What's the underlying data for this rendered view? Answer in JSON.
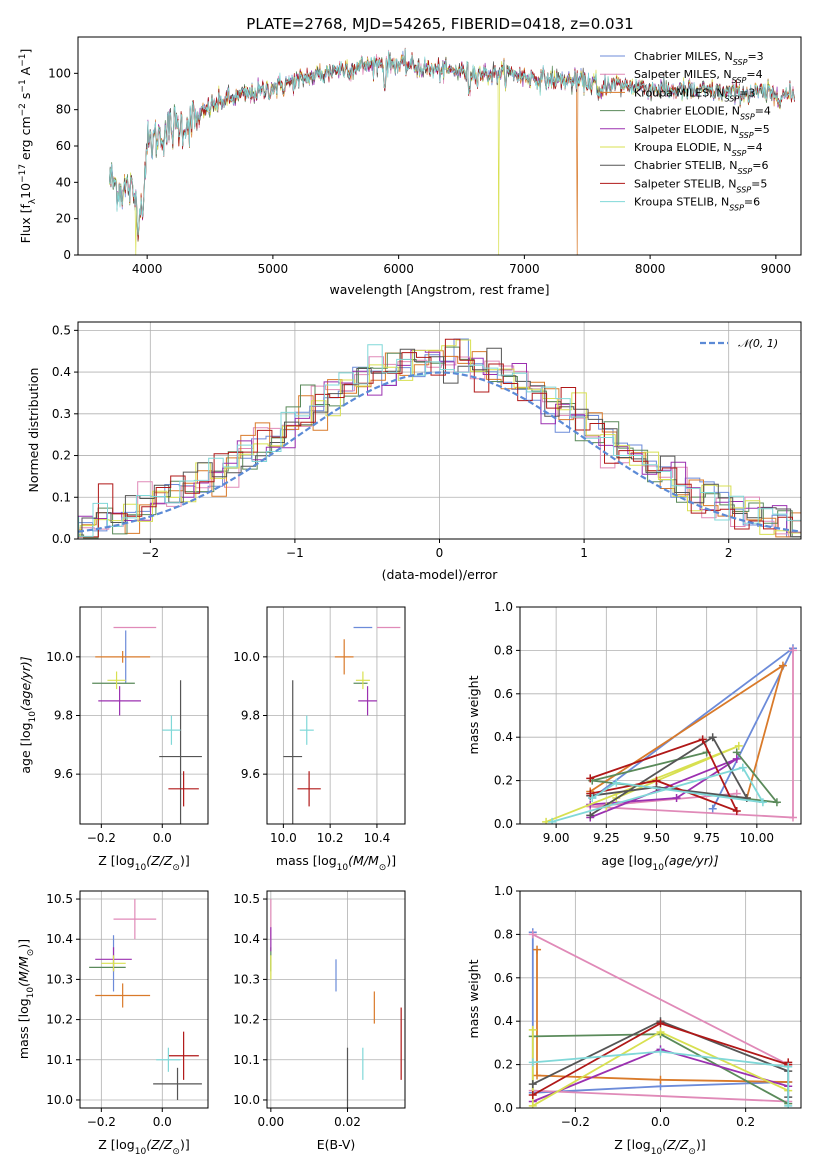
{
  "figure": {
    "title": "PLATE=2768, MJD=54265, FIBERID=0418, z=0.031"
  },
  "colors": {
    "Chabrier MILES": "#6c8bd9",
    "Salpeter MILES": "#e08ab8",
    "Kroupa MILES": "#d97a2a",
    "Chabrier ELODIE": "#5a8a5a",
    "Salpeter ELODIE": "#9b30b0",
    "Kroupa ELODIE": "#d8e050",
    "Chabrier STELIB": "#555555",
    "Salpeter STELIB": "#b01818",
    "Kroupa STELIB": "#80d8d8",
    "normal": "#5b8ad6"
  },
  "chart_data": [
    {
      "id": "spectrum",
      "type": "line",
      "title": "PLATE=2768, MJD=54265, FIBERID=0418, z=0.031",
      "xlabel": "wavelength [Angstrom, rest frame]",
      "ylabel": "Flux [f",
      "ylabel_parts": [
        "Flux [f",
        "λ",
        "10",
        "−17",
        " erg cm",
        "−2",
        " s",
        "−1",
        " A",
        "−1",
        "]"
      ],
      "xlim": [
        3450,
        9200
      ],
      "ylim": [
        0,
        120
      ],
      "xticks": [
        4000,
        5000,
        6000,
        7000,
        8000,
        9000
      ],
      "yticks": [
        0,
        20,
        40,
        60,
        80,
        100
      ],
      "grid": false,
      "legend": "top-right",
      "continuum_anchors": {
        "x": [
          3700,
          3800,
          3850,
          3900,
          3950,
          4000,
          4100,
          4200,
          4300,
          4400,
          4500,
          4700,
          4900,
          5100,
          5300,
          5500,
          5700,
          5900,
          6100,
          6300,
          6500,
          6700,
          6900,
          7100,
          7300,
          7500,
          7700,
          7900,
          8100,
          8300,
          8500,
          8700,
          8900,
          9100
        ],
        "y": [
          42,
          35,
          38,
          30,
          32,
          60,
          66,
          70,
          72,
          75,
          82,
          87,
          90,
          94,
          98,
          102,
          104,
          106,
          104,
          102,
          101,
          100,
          100,
          97,
          96,
          95,
          94,
          93,
          91,
          90,
          90,
          89,
          89,
          88
        ]
      },
      "spikes_down": [
        {
          "x": 3910,
          "y": 0,
          "series": "Kroupa ELODIE"
        },
        {
          "x": 6795,
          "y": 0,
          "series": "Kroupa ELODIE"
        },
        {
          "x": 7420,
          "y": 0,
          "series": "Kroupa MILES"
        }
      ],
      "series": [
        {
          "name": "Chabrier MILES",
          "nssp": "3"
        },
        {
          "name": "Salpeter MILES",
          "nssp": "4"
        },
        {
          "name": "Kroupa MILES",
          "nssp": "3"
        },
        {
          "name": "Chabrier ELODIE",
          "nssp": "4"
        },
        {
          "name": "Salpeter ELODIE",
          "nssp": "5"
        },
        {
          "name": "Kroupa ELODIE",
          "nssp": "4"
        },
        {
          "name": "Chabrier STELIB",
          "nssp": "6"
        },
        {
          "name": "Salpeter STELIB",
          "nssp": "5"
        },
        {
          "name": "Kroupa STELIB",
          "nssp": "6"
        }
      ],
      "legend_prefix": "N",
      "legend_sub": "SSP"
    },
    {
      "id": "residuals",
      "type": "histogram",
      "xlabel": "(data-model)/error",
      "ylabel": "Normed distribution",
      "xlim": [
        -2.5,
        2.5
      ],
      "ylim": [
        0,
        0.52
      ],
      "xticks": [
        -2,
        -1,
        0,
        1,
        2
      ],
      "xtick_labels": [
        "−2",
        "−1",
        "0",
        "1",
        "2"
      ],
      "yticks": [
        0,
        0.1,
        0.2,
        0.3,
        0.4,
        0.5
      ],
      "ytick_labels": [
        "0.0",
        "0.1",
        "0.2",
        "0.3",
        "0.4",
        "0.5"
      ],
      "grid": true,
      "legend": "upper right",
      "normal_label": "𝒩(0, 1)",
      "bin_width": 0.1
    },
    {
      "id": "age-vs-z",
      "type": "scatter",
      "xlabel": "Z [log",
      "xlabel_parts": [
        "Z [log",
        "10",
        "(Z/Z",
        "⊙",
        ")]"
      ],
      "ylabel_parts": [
        "age  [log",
        "10",
        "(age/yr)]"
      ],
      "xlim": [
        -0.27,
        0.15
      ],
      "ylim": [
        9.43,
        10.17
      ],
      "xticks": [
        -0.2,
        0.0
      ],
      "xtick_labels": [
        "−0.2",
        "0.0"
      ],
      "yticks": [
        9.6,
        9.8,
        10.0
      ],
      "ytick_labels": [
        "9.6",
        "9.8",
        "10.0"
      ],
      "grid": true,
      "points": [
        {
          "series": "Chabrier MILES",
          "x": -0.12,
          "y": 10.0,
          "xerr": 0.0,
          "yerr": 0.09
        },
        {
          "series": "Salpeter MILES",
          "x": -0.09,
          "y": 10.1,
          "xerr": 0.07,
          "yerr": 0.0
        },
        {
          "series": "Kroupa MILES",
          "x": -0.13,
          "y": 10.0,
          "xerr": 0.09,
          "yerr": 0.02
        },
        {
          "series": "Chabrier ELODIE",
          "x": -0.16,
          "y": 9.91,
          "xerr": 0.07,
          "yerr": 0.0
        },
        {
          "series": "Salpeter ELODIE",
          "x": -0.14,
          "y": 9.85,
          "xerr": 0.07,
          "yerr": 0.05
        },
        {
          "series": "Kroupa ELODIE",
          "x": -0.15,
          "y": 9.92,
          "xerr": 0.03,
          "yerr": 0.03
        },
        {
          "series": "Chabrier STELIB",
          "x": 0.06,
          "y": 9.66,
          "xerr": 0.07,
          "yerr": 0.26
        },
        {
          "series": "Salpeter STELIB",
          "x": 0.07,
          "y": 9.55,
          "xerr": 0.05,
          "yerr": 0.06
        },
        {
          "series": "Kroupa STELIB",
          "x": 0.03,
          "y": 9.75,
          "xerr": 0.03,
          "yerr": 0.05
        }
      ]
    },
    {
      "id": "age-vs-mass",
      "type": "scatter",
      "xlabel_parts": [
        "mass [log",
        "10",
        "(M/M",
        "⊙",
        ")]"
      ],
      "xlim": [
        9.93,
        10.52
      ],
      "ylim": [
        9.43,
        10.17
      ],
      "xticks": [
        10.0,
        10.2,
        10.4
      ],
      "xtick_labels": [
        "10.0",
        "10.2",
        "10.4"
      ],
      "yticks": [
        9.6,
        9.8,
        10.0
      ],
      "ytick_labels": [
        "9.6",
        "9.8",
        "10.0"
      ],
      "grid": true,
      "points": [
        {
          "series": "Chabrier MILES",
          "x": 10.34,
          "y": 10.1,
          "xerr": 0.04,
          "yerr": 0.0
        },
        {
          "series": "Salpeter MILES",
          "x": 10.45,
          "y": 10.1,
          "xerr": 0.05,
          "yerr": 0.0
        },
        {
          "series": "Kroupa MILES",
          "x": 10.26,
          "y": 10.0,
          "xerr": 0.04,
          "yerr": 0.06
        },
        {
          "series": "Chabrier ELODIE",
          "x": 10.33,
          "y": 9.91,
          "xerr": 0.03,
          "yerr": 0.0
        },
        {
          "series": "Salpeter ELODIE",
          "x": 10.36,
          "y": 9.85,
          "xerr": 0.04,
          "yerr": 0.05
        },
        {
          "series": "Kroupa ELODIE",
          "x": 10.34,
          "y": 9.92,
          "xerr": 0.03,
          "yerr": 0.03
        },
        {
          "series": "Chabrier STELIB",
          "x": 10.04,
          "y": 9.66,
          "xerr": 0.04,
          "yerr": 0.26
        },
        {
          "series": "Salpeter STELIB",
          "x": 10.11,
          "y": 9.55,
          "xerr": 0.05,
          "yerr": 0.06
        },
        {
          "series": "Kroupa STELIB",
          "x": 10.1,
          "y": 9.75,
          "xerr": 0.03,
          "yerr": 0.05
        }
      ]
    },
    {
      "id": "weight-vs-age",
      "type": "line",
      "xlabel_parts": [
        "age  [log",
        "10",
        "(age/yr)]"
      ],
      "ylabel": "mass weight",
      "xlim": [
        8.82,
        10.22
      ],
      "ylim": [
        0,
        1.0
      ],
      "xticks": [
        9.0,
        9.25,
        9.5,
        9.75,
        10.0
      ],
      "xtick_labels": [
        "9.00",
        "9.25",
        "9.50",
        "9.75",
        "10.00"
      ],
      "yticks": [
        0,
        0.2,
        0.4,
        0.6,
        0.8,
        1.0
      ],
      "ytick_labels": [
        "0.0",
        "0.2",
        "0.4",
        "0.6",
        "0.8",
        "1.0"
      ],
      "grid": true,
      "series": [
        {
          "name": "Chabrier MILES",
          "x": [
            9.78,
            10.18,
            9.18
          ],
          "y": [
            0.07,
            0.81,
            0.12
          ]
        },
        {
          "name": "Salpeter MILES",
          "x": [
            10.18,
            10.18,
            9.17,
            9.9
          ],
          "y": [
            0.8,
            0.03,
            0.08,
            0.14
          ]
        },
        {
          "name": "Kroupa MILES",
          "x": [
            9.95,
            10.13,
            9.17
          ],
          "y": [
            0.12,
            0.73,
            0.15
          ]
        },
        {
          "name": "Chabrier ELODIE",
          "x": [
            9.9,
            10.1,
            9.18,
            9.75
          ],
          "y": [
            0.33,
            0.1,
            0.2,
            0.33
          ]
        },
        {
          "name": "Salpeter ELODIE",
          "x": [
            9.17,
            9.9,
            9.6,
            9.17
          ],
          "y": [
            0.03,
            0.3,
            0.12,
            0.09
          ]
        },
        {
          "name": "Kroupa ELODIE",
          "x": [
            8.95,
            9.91,
            9.3,
            9.25
          ],
          "y": [
            0.01,
            0.36,
            0.12,
            0.08
          ]
        },
        {
          "name": "Chabrier STELIB",
          "x": [
            9.17,
            9.78,
            9.95,
            9.5,
            9.17
          ],
          "y": [
            0.04,
            0.4,
            0.12,
            0.17,
            0.13
          ]
        },
        {
          "name": "Salpeter STELIB",
          "x": [
            9.17,
            9.73,
            9.9,
            9.5,
            9.17
          ],
          "y": [
            0.21,
            0.39,
            0.06,
            0.2,
            0.14
          ]
        },
        {
          "name": "Kroupa STELIB",
          "x": [
            8.98,
            9.93,
            10.03,
            9.3,
            9.18
          ],
          "y": [
            0.01,
            0.26,
            0.1,
            0.19,
            0.12
          ]
        }
      ]
    },
    {
      "id": "mass-vs-z",
      "type": "scatter",
      "xlabel_parts": [
        "Z [log",
        "10",
        "(Z/Z",
        "⊙",
        ")]"
      ],
      "ylabel_parts": [
        "mass [log",
        "10",
        "(M/M",
        "⊙",
        ")]"
      ],
      "xlim": [
        -0.27,
        0.15
      ],
      "ylim": [
        9.98,
        10.52
      ],
      "xticks": [
        -0.2,
        0.0
      ],
      "xtick_labels": [
        "−0.2",
        "0.0"
      ],
      "yticks": [
        10.0,
        10.1,
        10.2,
        10.3,
        10.4,
        10.5
      ],
      "ytick_labels": [
        "10.0",
        "10.1",
        "10.2",
        "10.3",
        "10.4",
        "10.5"
      ],
      "grid": true,
      "points": [
        {
          "series": "Chabrier MILES",
          "x": -0.16,
          "y": 10.34,
          "xerr": 0.0,
          "yerr": 0.07
        },
        {
          "series": "Salpeter MILES",
          "x": -0.09,
          "y": 10.45,
          "xerr": 0.07,
          "yerr": 0.05
        },
        {
          "series": "Kroupa MILES",
          "x": -0.13,
          "y": 10.26,
          "xerr": 0.09,
          "yerr": 0.03
        },
        {
          "series": "Chabrier ELODIE",
          "x": -0.18,
          "y": 10.33,
          "xerr": 0.06,
          "yerr": 0.0
        },
        {
          "series": "Salpeter ELODIE",
          "x": -0.16,
          "y": 10.35,
          "xerr": 0.06,
          "yerr": 0.03
        },
        {
          "series": "Kroupa ELODIE",
          "x": -0.16,
          "y": 10.34,
          "xerr": 0.04,
          "yerr": 0.02
        },
        {
          "series": "Chabrier STELIB",
          "x": 0.05,
          "y": 10.04,
          "xerr": 0.08,
          "yerr": 0.04
        },
        {
          "series": "Salpeter STELIB",
          "x": 0.07,
          "y": 10.11,
          "xerr": 0.05,
          "yerr": 0.06
        },
        {
          "series": "Kroupa STELIB",
          "x": 0.02,
          "y": 10.1,
          "xerr": 0.04,
          "yerr": 0.03
        }
      ]
    },
    {
      "id": "mass-vs-ebv",
      "type": "scatter",
      "xlabel": "E(B-V)",
      "xlim": [
        -0.001,
        0.035
      ],
      "ylim": [
        9.98,
        10.52
      ],
      "xticks": [
        0.0,
        0.02
      ],
      "xtick_labels": [
        "0.00",
        "0.02"
      ],
      "yticks": [
        10.0,
        10.1,
        10.2,
        10.3,
        10.4,
        10.5
      ],
      "ytick_labels": [
        "10.0",
        "10.1",
        "10.2",
        "10.3",
        "10.4",
        "10.5"
      ],
      "grid": true,
      "points": [
        {
          "series": "Chabrier MILES",
          "x": 0.017,
          "y": 10.31,
          "xerr": 0.0,
          "yerr": 0.04
        },
        {
          "series": "Salpeter MILES",
          "x": 0.0,
          "y": 10.45,
          "xerr": 0.0,
          "yerr": 0.05
        },
        {
          "series": "Kroupa MILES",
          "x": 0.027,
          "y": 10.23,
          "xerr": 0.0,
          "yerr": 0.04
        },
        {
          "series": "Chabrier ELODIE",
          "x": 0.0,
          "y": 10.35,
          "xerr": 0.0,
          "yerr": 0.03
        },
        {
          "series": "Salpeter ELODIE",
          "x": 0.0,
          "y": 10.4,
          "xerr": 0.0,
          "yerr": 0.03
        },
        {
          "series": "Kroupa ELODIE",
          "x": 0.0,
          "y": 10.33,
          "xerr": 0.0,
          "yerr": 0.03
        },
        {
          "series": "Chabrier STELIB",
          "x": 0.02,
          "y": 10.03,
          "xerr": 0.0,
          "yerr": 0.1
        },
        {
          "series": "Salpeter STELIB",
          "x": 0.034,
          "y": 10.14,
          "xerr": 0.0,
          "yerr": 0.09
        },
        {
          "series": "Kroupa STELIB",
          "x": 0.024,
          "y": 10.09,
          "xerr": 0.0,
          "yerr": 0.04
        }
      ]
    },
    {
      "id": "weight-vs-z",
      "type": "line",
      "xlabel_parts": [
        "Z [log",
        "10",
        "(Z/Z",
        "⊙",
        ")]"
      ],
      "ylabel": "mass weight",
      "xlim": [
        -0.33,
        0.33
      ],
      "ylim": [
        0,
        1.0
      ],
      "xticks": [
        -0.2,
        0.0,
        0.2
      ],
      "xtick_labels": [
        "−0.2",
        "0.0",
        "0.2"
      ],
      "yticks": [
        0,
        0.2,
        0.4,
        0.6,
        0.8,
        1.0
      ],
      "ytick_labels": [
        "0.0",
        "0.2",
        "0.4",
        "0.6",
        "0.8",
        "1.0"
      ],
      "grid": true,
      "series": [
        {
          "name": "Chabrier MILES",
          "x": [
            -0.3,
            -0.3,
            0.0,
            0.3
          ],
          "y": [
            0.81,
            0.07,
            0.1,
            0.12
          ]
        },
        {
          "name": "Salpeter MILES",
          "x": [
            -0.3,
            0.3,
            0.3,
            -0.3
          ],
          "y": [
            0.8,
            0.2,
            0.03,
            0.08
          ]
        },
        {
          "name": "Kroupa MILES",
          "x": [
            -0.29,
            -0.29,
            0.0,
            0.3
          ],
          "y": [
            0.73,
            0.15,
            0.13,
            0.12
          ]
        },
        {
          "name": "Chabrier ELODIE",
          "x": [
            -0.3,
            0.0,
            0.3
          ],
          "y": [
            0.33,
            0.34,
            0.02
          ]
        },
        {
          "name": "Salpeter ELODIE",
          "x": [
            -0.3,
            0.0,
            0.3
          ],
          "y": [
            0.03,
            0.27,
            0.1
          ]
        },
        {
          "name": "Kroupa ELODIE",
          "x": [
            -0.3,
            -0.3,
            0.0,
            0.3
          ],
          "y": [
            0.36,
            0.01,
            0.35,
            0.08
          ]
        },
        {
          "name": "Chabrier STELIB",
          "x": [
            -0.3,
            0.0,
            0.3,
            0.3
          ],
          "y": [
            0.11,
            0.4,
            0.17,
            0.05
          ]
        },
        {
          "name": "Salpeter STELIB",
          "x": [
            -0.3,
            0.0,
            0.3,
            0.3
          ],
          "y": [
            0.06,
            0.39,
            0.2,
            0.21
          ]
        },
        {
          "name": "Kroupa STELIB",
          "x": [
            -0.3,
            0.0,
            0.3,
            0.3
          ],
          "y": [
            0.21,
            0.26,
            0.19,
            0.01
          ]
        }
      ]
    }
  ]
}
